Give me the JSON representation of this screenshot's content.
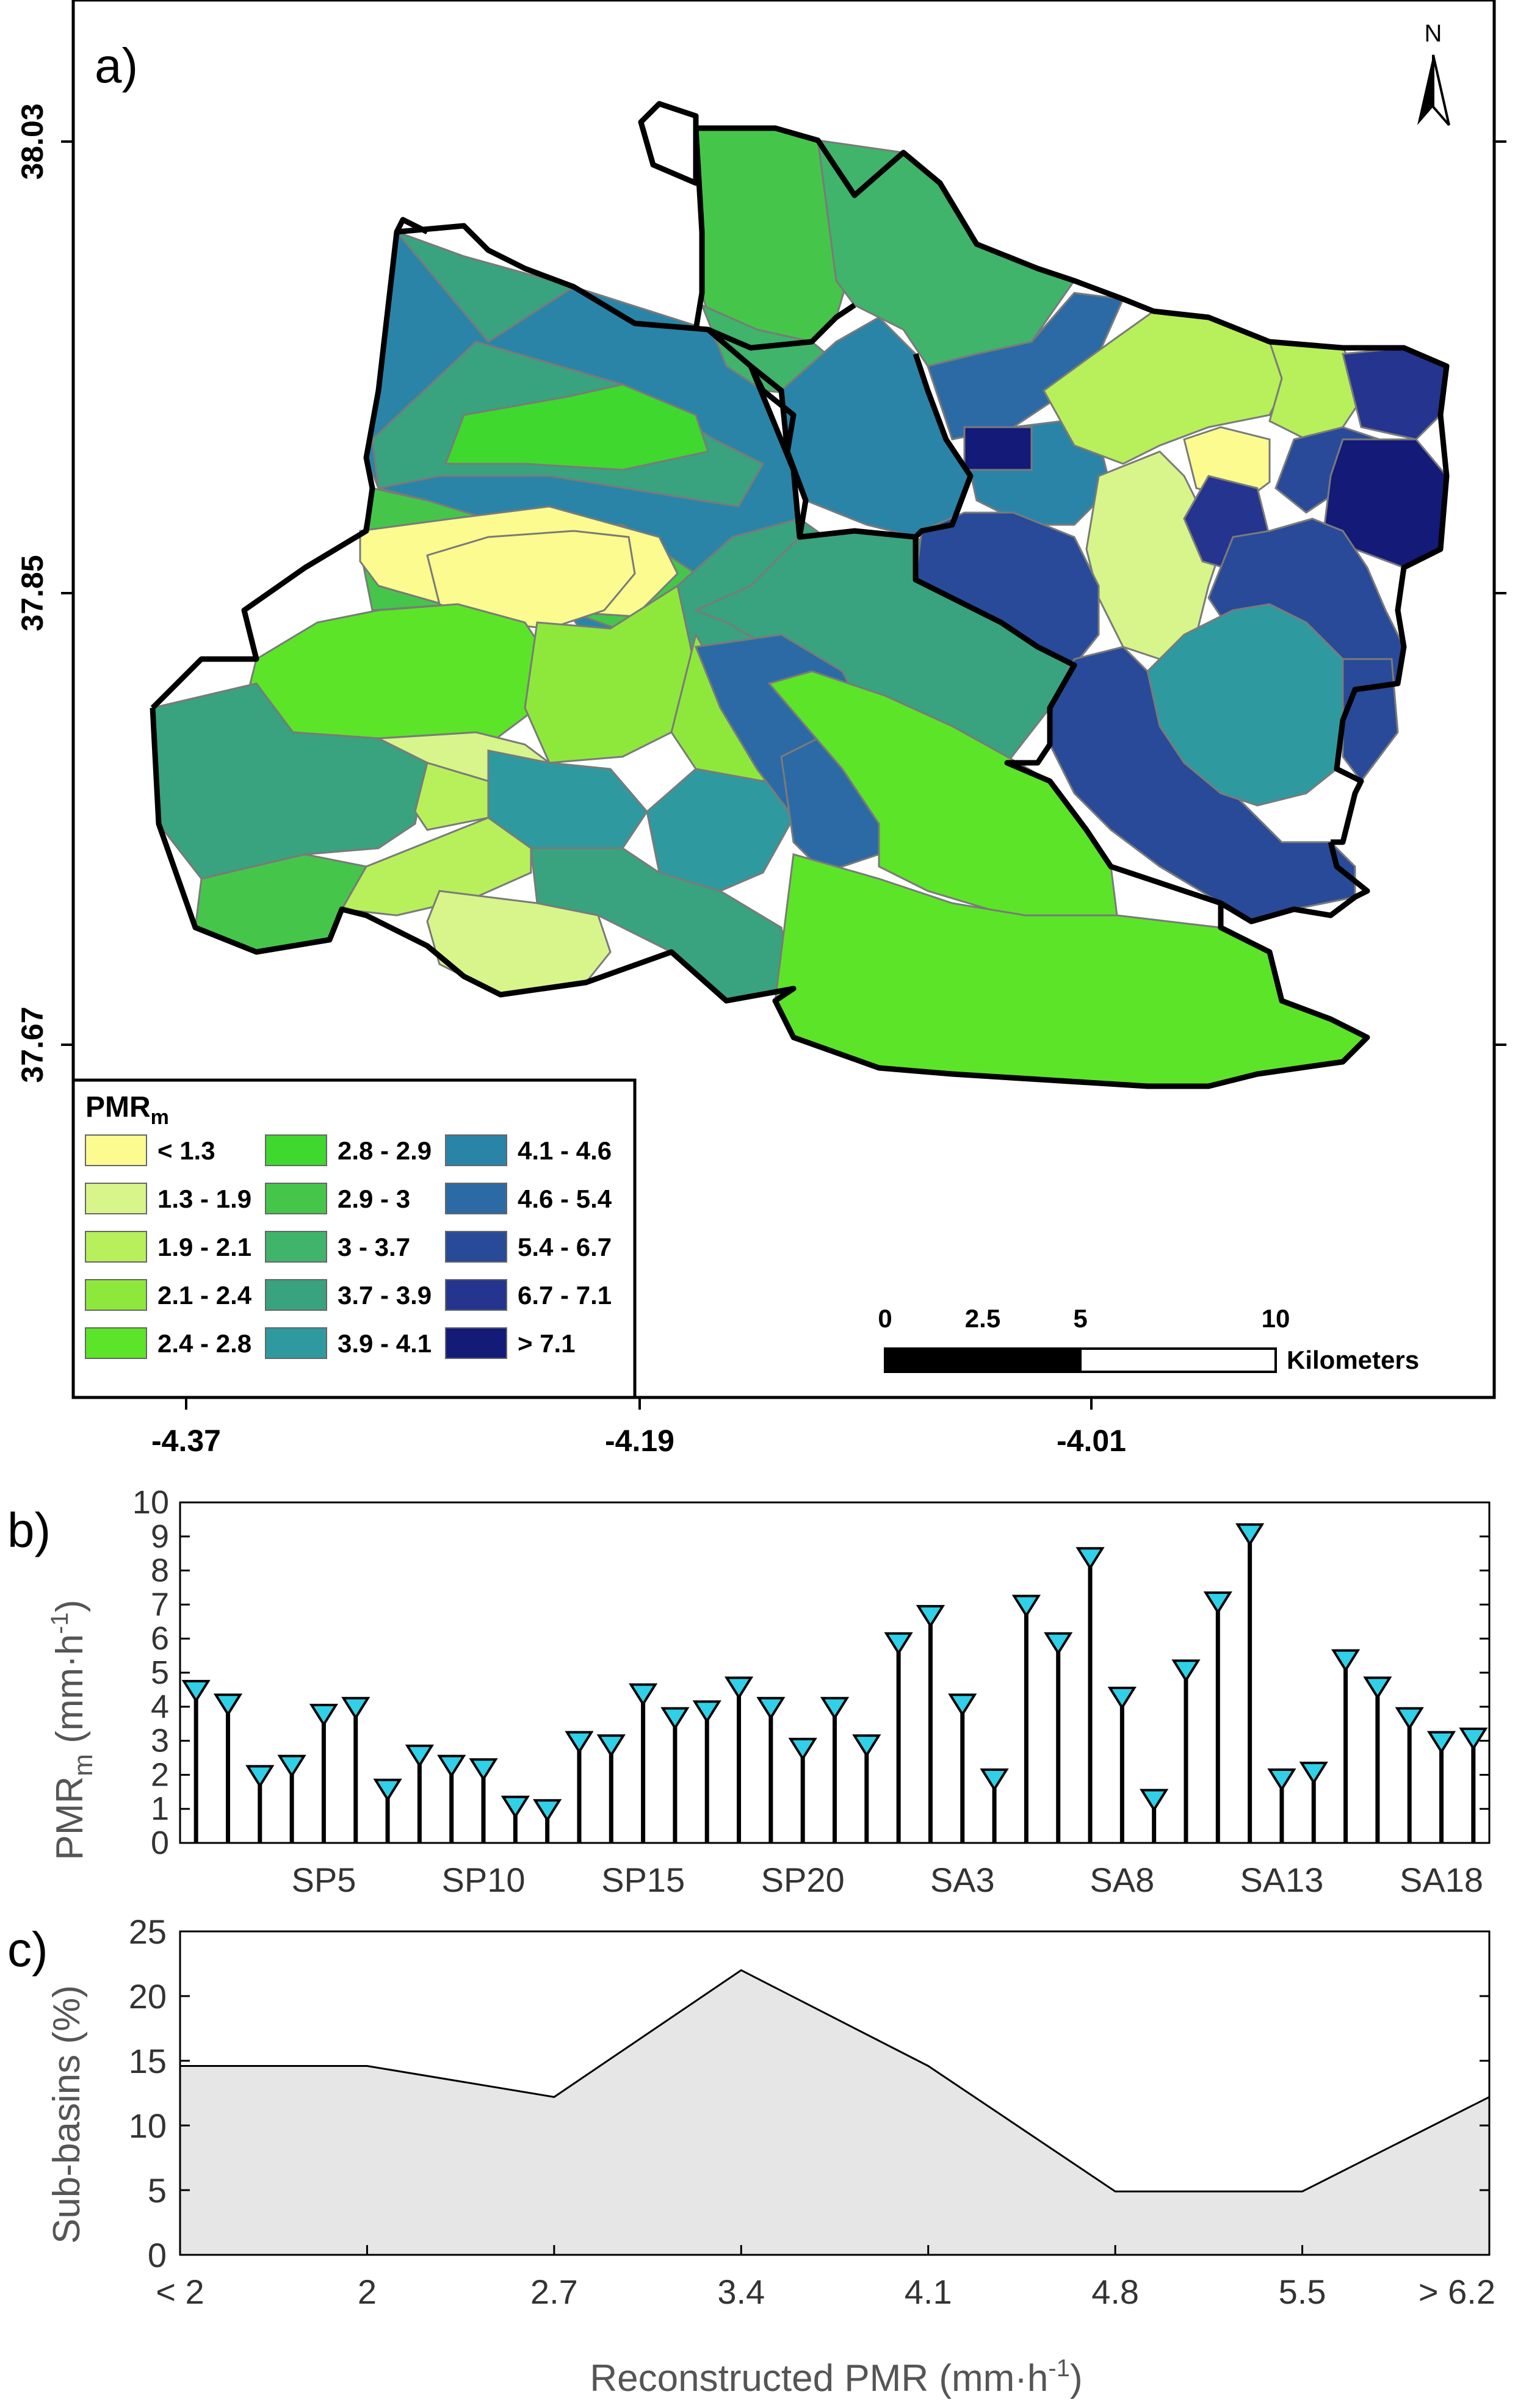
{
  "panel_a": {
    "label": "a)",
    "north_label": "N",
    "y_ticks": [
      "38.03",
      "37.85",
      "37.67"
    ],
    "x_ticks": [
      "-4.37",
      "-4.19",
      "-4.01"
    ],
    "legend": {
      "title_main": "PMR",
      "title_sub": "m",
      "entries": [
        {
          "label": "< 1.3",
          "color": "#fbfb8f"
        },
        {
          "label": "1.3 - 1.9",
          "color": "#d7f58a"
        },
        {
          "label": "1.9 - 2.1",
          "color": "#b7f05a"
        },
        {
          "label": "2.1 - 2.4",
          "color": "#8ee83c"
        },
        {
          "label": "2.4 - 2.8",
          "color": "#5ce428"
        },
        {
          "label": "2.8 - 2.9",
          "color": "#3ed82e"
        },
        {
          "label": "2.9 - 3",
          "color": "#45c64a"
        },
        {
          "label": "3 - 3.7",
          "color": "#40b46a"
        },
        {
          "label": "3.7 - 3.9",
          "color": "#38a37e"
        },
        {
          "label": "3.9 - 4.1",
          "color": "#2e9aa0"
        },
        {
          "label": "4.1 - 4.6",
          "color": "#2a84a8"
        },
        {
          "label": "4.6 - 5.4",
          "color": "#2c6aa5"
        },
        {
          "label": "5.4 - 6.7",
          "color": "#284a98"
        },
        {
          "label": "6.7 - 7.1",
          "color": "#25348e"
        },
        {
          "label": "> 7.1",
          "color": "#141a78"
        }
      ]
    },
    "scale_bar": {
      "labels": [
        "0",
        "2.5",
        "5",
        "10"
      ],
      "unit": "Kilometers"
    }
  },
  "chart_data": [
    {
      "type": "stem",
      "panel_label": "b)",
      "ylabel": "PMR",
      "ylabel_sub": "m",
      "ylabel_unit_pre": " (mm·h",
      "ylabel_unit_sup": "-1",
      "ylabel_unit_post": ")",
      "ylim": [
        0,
        10
      ],
      "yticks": [
        0,
        1,
        2,
        3,
        4,
        5,
        6,
        7,
        8,
        9,
        10
      ],
      "tick_labels": [
        "SP5",
        "SP10",
        "SP15",
        "SP20",
        "SA3",
        "SA8",
        "SA13",
        "SA18"
      ],
      "tick_positions": [
        5,
        10,
        15,
        20,
        25,
        30,
        35,
        40
      ],
      "marker_color": "#30d0e8",
      "values": [
        4.5,
        4.1,
        2.0,
        2.3,
        3.8,
        4.0,
        1.6,
        2.6,
        2.3,
        2.2,
        1.1,
        1.0,
        3.0,
        2.9,
        4.4,
        3.7,
        3.9,
        4.6,
        4.0,
        2.8,
        4.0,
        2.9,
        5.9,
        6.7,
        4.1,
        1.9,
        7.0,
        5.9,
        8.4,
        4.3,
        1.3,
        5.1,
        7.1,
        9.1,
        1.9,
        2.1,
        5.4,
        4.6,
        3.7,
        3.0,
        3.1
      ]
    },
    {
      "type": "area",
      "panel_label": "c)",
      "ylabel": "Sub-basins (%)",
      "xlabel_pre": "Reconstructed PMR (mm·h",
      "xlabel_sup": "-1",
      "xlabel_post": ")",
      "categories": [
        "< 2",
        "2",
        "2.7",
        "3.4",
        "4.1",
        "4.8",
        "5.5",
        "> 6.2"
      ],
      "values": [
        14.6,
        14.6,
        12.2,
        22.0,
        14.6,
        4.9,
        4.9,
        12.2
      ],
      "ylim": [
        0,
        25
      ],
      "yticks": [
        0,
        5,
        10,
        15,
        20,
        25
      ],
      "fill_color": "#e6e6e6"
    }
  ]
}
